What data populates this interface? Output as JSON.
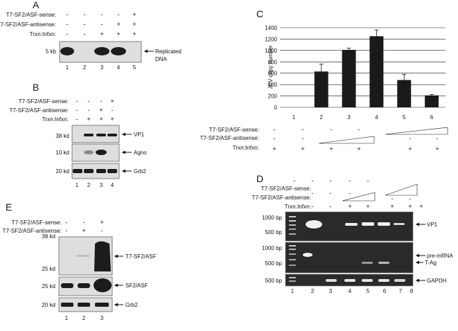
{
  "panel_a": {
    "letter": "A",
    "row_labels": [
      "T7-SF2/ASF-sense:",
      "T7-SF2/ASF-antisense:",
      "Trxn:Infxn:"
    ],
    "rows": [
      [
        "-",
        "-",
        "-",
        "-",
        "+"
      ],
      [
        "-",
        "-",
        "-",
        "+",
        "+"
      ],
      [
        "-",
        "-",
        "+",
        "+",
        "+"
      ]
    ],
    "marker": "5 kb",
    "band_label": "Replicated",
    "band_label2": "DNA",
    "lanes": [
      "1",
      "2",
      "3",
      "4",
      "5"
    ]
  },
  "panel_b": {
    "letter": "B",
    "row_labels": [
      "T7-SF2/ASF-sense:",
      "T7-SF2/ASF-antisense:",
      "Trxn:Infxn:"
    ],
    "rows": [
      [
        "-",
        "-",
        "-",
        "+"
      ],
      [
        "-",
        "-",
        "+",
        "-"
      ],
      [
        "-",
        "+",
        "+",
        "+"
      ]
    ],
    "markers": [
      "38 kd",
      "10 kd",
      "20 kd"
    ],
    "bands": [
      "VP1",
      "Agno",
      "Grb2"
    ],
    "lanes": [
      "1",
      "2",
      "3",
      "4"
    ]
  },
  "panel_c": {
    "letter": "C",
    "ylabel": "JCV copy number",
    "row_labels": [
      "T7-SF2/ASF-sense:",
      "T7-SF2/ASF-antisense:",
      "Trxn:Infxn:"
    ],
    "lanes": [
      "1",
      "2",
      "3",
      "4",
      "5",
      "6"
    ],
    "sense_row": [
      "-",
      "-",
      "-",
      "-",
      "",
      ""
    ],
    "antisense_row": [
      "-",
      "-",
      "",
      "",
      "-",
      "-"
    ],
    "trxn_row": [
      "+",
      "+",
      "+",
      "+",
      "+",
      "+"
    ]
  },
  "panel_d": {
    "letter": "D",
    "row_labels": [
      "T7-SF2/ASF-sense:",
      "T7-SF2/ASF-antisense:",
      "Trxn.Infxn:"
    ],
    "sense_row": [
      "-",
      "-",
      "-",
      "-",
      "-",
      "",
      ""
    ],
    "antisense_row": [
      "-",
      "-",
      "-",
      "-",
      "",
      "-",
      "-"
    ],
    "trxn_row": [
      "-",
      "-",
      "+",
      "+",
      "+",
      "+",
      "+"
    ],
    "markers": [
      "1000 bp",
      "500 bp",
      "1000 bp",
      "500 bp",
      "500 bp"
    ],
    "bands": [
      "VP1",
      "pre-mRNA",
      "T-Ag",
      "GAPDH"
    ],
    "lanes": [
      "1",
      "2",
      "3",
      "4",
      "5",
      "6",
      "7",
      "8"
    ]
  },
  "panel_e": {
    "letter": "E",
    "row_labels": [
      "T7-SF2/ASF-sense:",
      "T7-SF2/ASF-antisense:"
    ],
    "rows": [
      [
        "-",
        "-",
        "+"
      ],
      [
        "-",
        "+",
        "-"
      ]
    ],
    "markers": [
      "38 kd",
      "25 kd",
      "25 kd",
      "20 kd"
    ],
    "bands": [
      "T7-SF2/ASF",
      "SF2/ASF",
      "Grb2"
    ],
    "lanes": [
      "1",
      "2",
      "3"
    ]
  },
  "chart_data": {
    "type": "bar",
    "title": "",
    "xlabel": "",
    "ylabel": "JCV copy number",
    "categories": [
      "1",
      "2",
      "3",
      "4",
      "5",
      "6"
    ],
    "values": [
      0,
      630,
      1010,
      1250,
      480,
      210
    ],
    "errors": [
      0,
      130,
      30,
      110,
      100,
      15
    ],
    "ylim": [
      0,
      1400
    ],
    "yticks": [
      0,
      200,
      400,
      600,
      800,
      1000,
      1200,
      1400
    ],
    "grid": true,
    "bar_color": "#1a1a1a"
  }
}
